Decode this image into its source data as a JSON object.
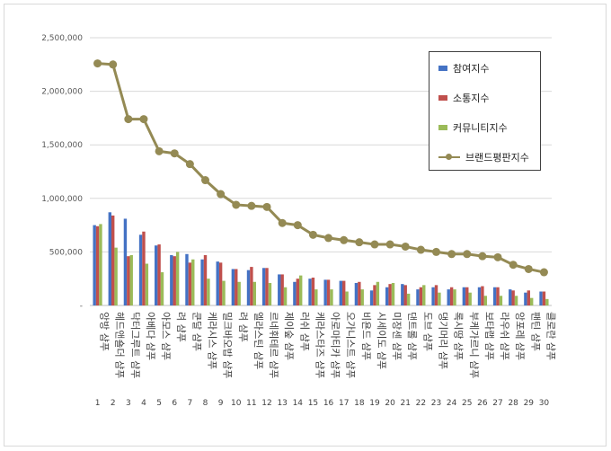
{
  "colors": {
    "participation": "#4472c4",
    "communication": "#c0504d",
    "community": "#9bbb59",
    "brand": "#948a54"
  },
  "legend": {
    "participation": "참여지수",
    "communication": "소통지수",
    "community": "커뮤니티지수",
    "brand": "브랜드평판지수"
  },
  "chart_data": {
    "type": "bar",
    "ylim": [
      0,
      2500000
    ],
    "yticks": [
      "-",
      "500,000",
      "1,000,000",
      "1,500,000",
      "2,000,000",
      "2,500,000"
    ],
    "ytick_values": [
      0,
      500000,
      1000000,
      1500000,
      2000000,
      2500000
    ],
    "legend_position": "top-right",
    "categories": [
      "1",
      "2",
      "3",
      "4",
      "5",
      "6",
      "7",
      "8",
      "9",
      "10",
      "11",
      "12",
      "13",
      "14",
      "15",
      "16",
      "17",
      "18",
      "19",
      "20",
      "21",
      "22",
      "23",
      "24",
      "25",
      "26",
      "27",
      "28",
      "29",
      "30"
    ],
    "labels": [
      "앙방 샴푸",
      "헤드앤숄더 샴푸",
      "닥터그루트 샴푸",
      "아베다 샴푸",
      "아모스 샴푸",
      "려 샴푸",
      "쿤달 샴푸",
      "케라시스 샴푸",
      "밀크바오밥 샴푸",
      "려 샴푸",
      "엘라스틴 샴푸",
      "르네휘테르 샴푸",
      "제이숲 샴푸",
      "러쉬 샴푸",
      "케라스타즈 샴푸",
      "아로마티카 샴푸",
      "오가니스트 샴푸",
      "비욘드 샴푸",
      "시세이도 샴푸",
      "미장센 샴푸",
      "댄트롤 샴푸",
      "도브 샴푸",
      "댕기머리 샴푸",
      "록시땅 샴푸",
      "부케가르니 샴푸",
      "보타랩 샴푸",
      "라우쉬 샴푸",
      "앙포레 샴푸",
      "팬틴 샴푸",
      "클로란 샴푸"
    ],
    "series": [
      {
        "name": "참여지수",
        "type": "bar",
        "values": [
          750000,
          870000,
          810000,
          660000,
          560000,
          470000,
          480000,
          430000,
          410000,
          340000,
          330000,
          350000,
          290000,
          220000,
          250000,
          240000,
          230000,
          210000,
          140000,
          170000,
          200000,
          150000,
          170000,
          150000,
          170000,
          170000,
          170000,
          150000,
          120000,
          130000
        ]
      },
      {
        "name": "소통지수",
        "type": "bar",
        "values": [
          740000,
          840000,
          460000,
          690000,
          570000,
          460000,
          400000,
          470000,
          400000,
          340000,
          360000,
          350000,
          290000,
          250000,
          260000,
          240000,
          230000,
          220000,
          190000,
          200000,
          190000,
          170000,
          190000,
          170000,
          170000,
          180000,
          170000,
          140000,
          140000,
          130000
        ]
      },
      {
        "name": "커뮤니티지수",
        "type": "bar",
        "values": [
          760000,
          540000,
          470000,
          390000,
          310000,
          500000,
          430000,
          250000,
          230000,
          220000,
          220000,
          210000,
          170000,
          280000,
          150000,
          150000,
          130000,
          150000,
          220000,
          210000,
          110000,
          190000,
          120000,
          150000,
          120000,
          90000,
          90000,
          90000,
          70000,
          60000
        ]
      },
      {
        "name": "브랜드평판지수",
        "type": "line",
        "values": [
          2260000,
          2250000,
          1740000,
          1740000,
          1440000,
          1420000,
          1320000,
          1170000,
          1040000,
          940000,
          930000,
          920000,
          770000,
          750000,
          660000,
          630000,
          610000,
          590000,
          570000,
          570000,
          550000,
          520000,
          500000,
          480000,
          480000,
          460000,
          450000,
          380000,
          340000,
          310000
        ]
      }
    ]
  }
}
